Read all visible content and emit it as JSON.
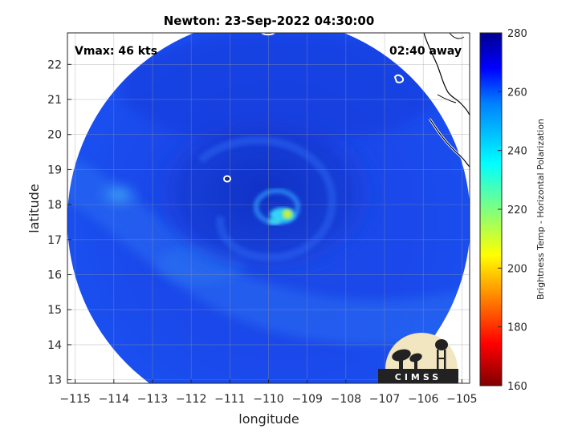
{
  "title": "Newton: 23-Sep-2022 04:30:00",
  "vmax_label": "Vmax: 46 kts",
  "time_away_label": "02:40 away",
  "xlabel": "longitude",
  "ylabel": "latitude",
  "colorbar_label": "Brightness Temp - Horizontal Polarization",
  "logo_text": "CIMSS",
  "map": {
    "xlim": [
      -115.2,
      -104.8
    ],
    "ylim": [
      12.9,
      22.9
    ],
    "x_ticks": [
      -115,
      -114,
      -113,
      -112,
      -111,
      -110,
      -109,
      -108,
      -107,
      -106,
      -105
    ],
    "y_ticks": [
      13,
      14,
      15,
      16,
      17,
      18,
      19,
      20,
      21,
      22
    ],
    "grid": true,
    "storm_center": [
      -109.75,
      17.8
    ]
  },
  "colorbar": {
    "min": 160,
    "max": 280,
    "ticks": [
      160,
      180,
      200,
      220,
      240,
      260,
      280
    ],
    "colormap": "jet"
  },
  "colors": {
    "background_blue": "#1a44e8",
    "inner_dark_blue": "#0e2fc6",
    "cyan_band": "#2e8cf5",
    "core_cyan": "#35d4f5",
    "core_yellow": "#c8f040",
    "coast": "#000000"
  }
}
